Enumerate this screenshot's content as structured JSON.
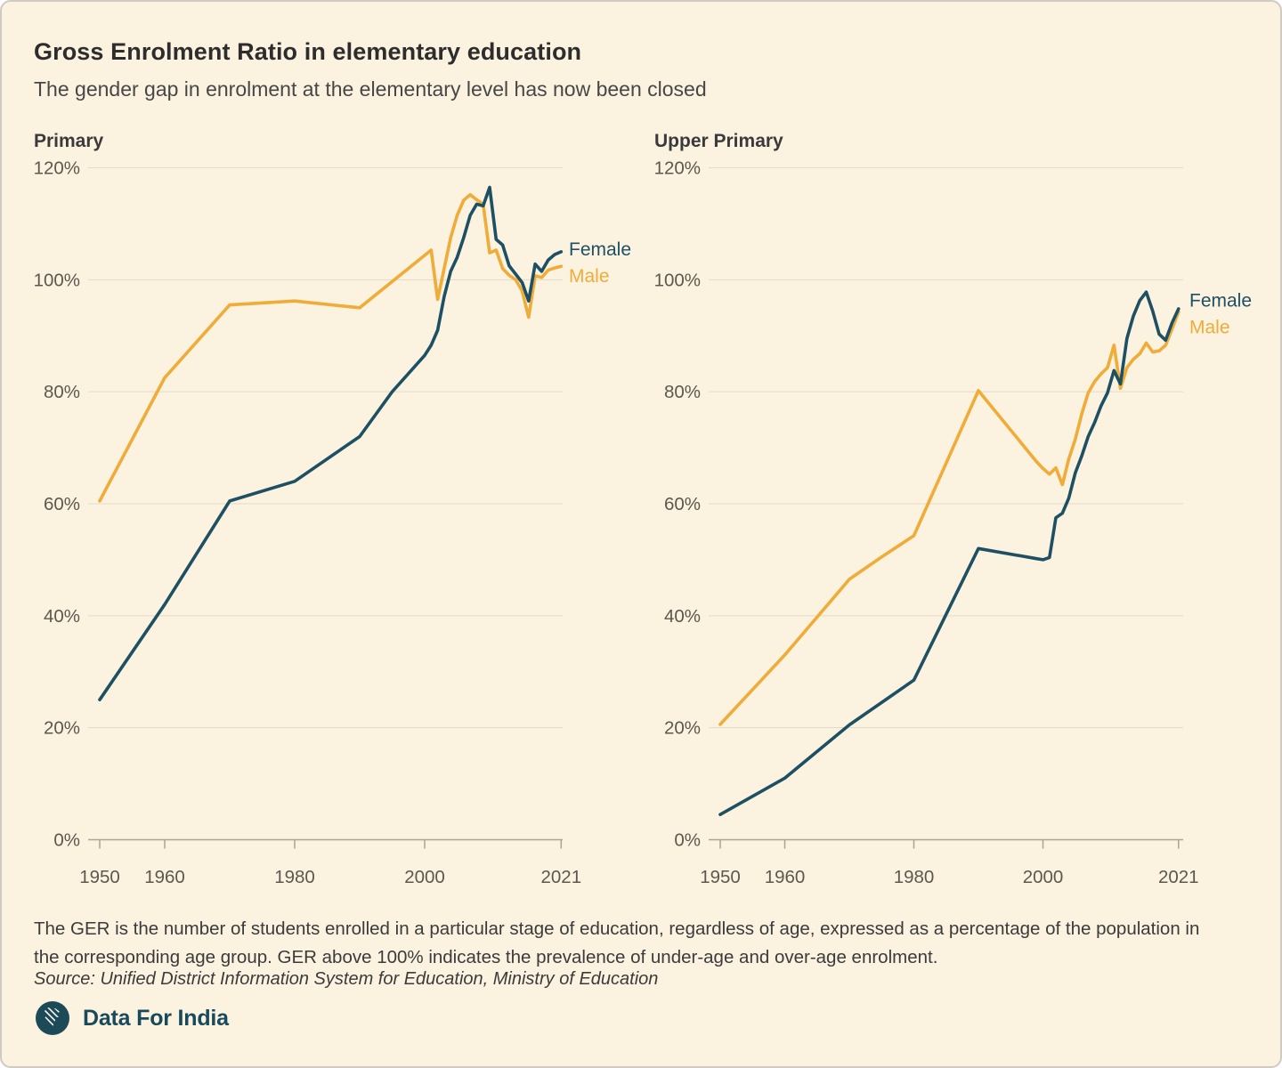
{
  "header": {
    "title": "Gross Enrolment Ratio in elementary education",
    "subtitle": "The gender gap in enrolment at the elementary level has now been closed"
  },
  "colors": {
    "female": "#1E5064",
    "male": "#F0AC38",
    "background": "#FBF2E0",
    "grid": "#E3DBC9",
    "axis": "#ACA392",
    "tick_label": "#5C584E",
    "chart_title": "#3A3A3A",
    "logo": "#174A5C"
  },
  "chart_data": [
    {
      "type": "line",
      "title": "Primary",
      "xlim": [
        1950,
        2021
      ],
      "ylim": [
        0,
        120
      ],
      "grid": true,
      "legend_position": "right-of-line-end",
      "x_tick_values": [
        1950,
        1960,
        1980,
        2000,
        2021
      ],
      "x_tick_labels": [
        "1950",
        "1960",
        "1980",
        "2000",
        "2021"
      ],
      "y_tick_values": [
        0,
        20,
        40,
        60,
        80,
        100,
        120
      ],
      "y_tick_labels": [
        "0%",
        "20%",
        "40%",
        "60%",
        "80%",
        "100%",
        "120%"
      ],
      "series": [
        {
          "name": "Female",
          "color_key": "female",
          "points": [
            [
              1950,
              25
            ],
            [
              1960,
              42
            ],
            [
              1970,
              60.5
            ],
            [
              1980,
              64
            ],
            [
              1990,
              72
            ],
            [
              1995,
              80
            ],
            [
              2000,
              86.5
            ],
            [
              2001,
              88.3
            ],
            [
              2002,
              91
            ],
            [
              2003,
              97
            ],
            [
              2004,
              101.5
            ],
            [
              2005,
              104
            ],
            [
              2006,
              107.5
            ],
            [
              2007,
              111.5
            ],
            [
              2008,
              113.5
            ],
            [
              2009,
              113.2
            ],
            [
              2010,
              116.5
            ],
            [
              2011,
              107.2
            ],
            [
              2012,
              106.2
            ],
            [
              2013,
              102.5
            ],
            [
              2014,
              101
            ],
            [
              2015,
              99.5
            ],
            [
              2016,
              96.2
            ],
            [
              2017,
              102.8
            ],
            [
              2018,
              101.5
            ],
            [
              2019,
              103.5
            ],
            [
              2020,
              104.5
            ],
            [
              2021,
              105
            ]
          ]
        },
        {
          "name": "Male",
          "color_key": "male",
          "points": [
            [
              1950,
              60.5
            ],
            [
              1960,
              82.5
            ],
            [
              1970,
              95.5
            ],
            [
              1980,
              96.2
            ],
            [
              1990,
              95
            ],
            [
              2001,
              105.3
            ],
            [
              2002,
              96.5
            ],
            [
              2003,
              102
            ],
            [
              2004,
              107.5
            ],
            [
              2005,
              111.5
            ],
            [
              2006,
              114.2
            ],
            [
              2007,
              115.2
            ],
            [
              2008,
              114.3
            ],
            [
              2009,
              113.5
            ],
            [
              2010,
              104.8
            ],
            [
              2011,
              105.3
            ],
            [
              2012,
              102
            ],
            [
              2013,
              100.8
            ],
            [
              2014,
              100
            ],
            [
              2015,
              98
            ],
            [
              2016,
              93.3
            ],
            [
              2017,
              100.7
            ],
            [
              2018,
              100.4
            ],
            [
              2019,
              101.7
            ],
            [
              2020,
              102.1
            ],
            [
              2021,
              102.4
            ]
          ]
        }
      ]
    },
    {
      "type": "line",
      "title": "Upper Primary",
      "xlim": [
        1950,
        2021
      ],
      "ylim": [
        0,
        120
      ],
      "grid": true,
      "legend_position": "right-of-line-end",
      "x_tick_values": [
        1950,
        1960,
        1980,
        2000,
        2021
      ],
      "x_tick_labels": [
        "1950",
        "1960",
        "1980",
        "2000",
        "2021"
      ],
      "y_tick_values": [
        0,
        20,
        40,
        60,
        80,
        100,
        120
      ],
      "y_tick_labels": [
        "0%",
        "20%",
        "40%",
        "60%",
        "80%",
        "100%",
        "120%"
      ],
      "series": [
        {
          "name": "Female",
          "color_key": "female",
          "points": [
            [
              1950,
              4.5
            ],
            [
              1960,
              11
            ],
            [
              1970,
              20.5
            ],
            [
              1980,
              28.5
            ],
            [
              1990,
              52
            ],
            [
              1999,
              50.2
            ],
            [
              2000,
              50
            ],
            [
              2001,
              50.4
            ],
            [
              2002,
              57.5
            ],
            [
              2003,
              58.3
            ],
            [
              2004,
              61
            ],
            [
              2005,
              65.5
            ],
            [
              2006,
              68.5
            ],
            [
              2007,
              72
            ],
            [
              2008,
              74.5
            ],
            [
              2009,
              77.5
            ],
            [
              2010,
              79.8
            ],
            [
              2011,
              83.8
            ],
            [
              2012,
              81.4
            ],
            [
              2013,
              89.5
            ],
            [
              2014,
              93.5
            ],
            [
              2015,
              96.3
            ],
            [
              2016,
              97.8
            ],
            [
              2017,
              94.4
            ],
            [
              2018,
              90.3
            ],
            [
              2019,
              89.2
            ],
            [
              2020,
              92.3
            ],
            [
              2021,
              94.8
            ]
          ]
        },
        {
          "name": "Male",
          "color_key": "male",
          "points": [
            [
              1950,
              20.6
            ],
            [
              1960,
              33
            ],
            [
              1970,
              46.5
            ],
            [
              1975,
              50.5
            ],
            [
              1980,
              54.3
            ],
            [
              1990,
              80.2
            ],
            [
              1999,
              67.5
            ],
            [
              2000,
              66.3
            ],
            [
              2001,
              65.3
            ],
            [
              2002,
              66.4
            ],
            [
              2003,
              63.4
            ],
            [
              2004,
              68
            ],
            [
              2005,
              71.5
            ],
            [
              2006,
              76
            ],
            [
              2007,
              79.8
            ],
            [
              2008,
              81.8
            ],
            [
              2009,
              83.2
            ],
            [
              2010,
              84.3
            ],
            [
              2011,
              88.3
            ],
            [
              2012,
              80.6
            ],
            [
              2013,
              84.3
            ],
            [
              2014,
              85.8
            ],
            [
              2015,
              86.8
            ],
            [
              2016,
              88.7
            ],
            [
              2017,
              87.1
            ],
            [
              2018,
              87.3
            ],
            [
              2019,
              88.3
            ],
            [
              2020,
              91.2
            ],
            [
              2021,
              94.3
            ]
          ]
        }
      ]
    }
  ],
  "footer": {
    "footnote": "The GER is the number of students enrolled in a particular stage of education, regardless of age, expressed as a percentage of the population in the corresponding age group. GER above 100% indicates the prevalence of under-age and over-age enrolment.",
    "source": "Source: Unified District Information System for Education, Ministry of Education",
    "brand": "Data For India"
  }
}
